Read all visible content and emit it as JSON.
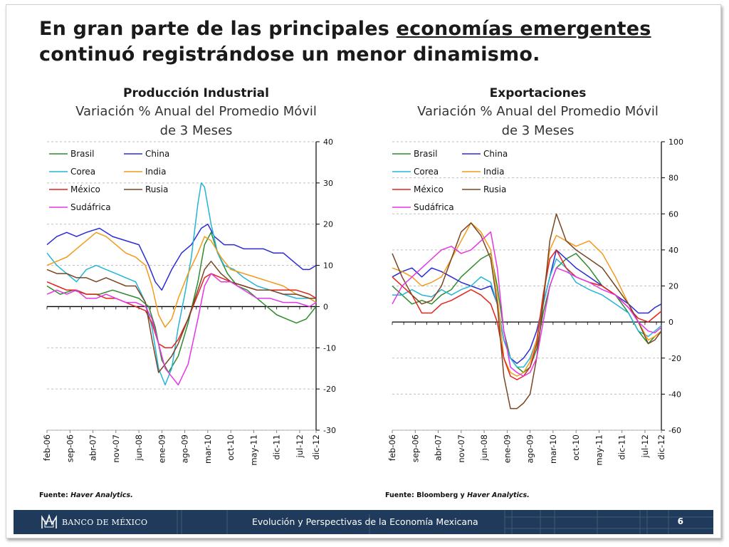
{
  "headline": {
    "part1": "En gran parte de las principales ",
    "underlined": "economías emergentes",
    "part2": " continuó registrándose un menor dinamismo."
  },
  "source_left": {
    "label": "Fuente: ",
    "italic": "Haver Analytics."
  },
  "source_right": {
    "label": "Fuente: Bloomberg y ",
    "italic": "Haver Analytics."
  },
  "footer": {
    "bank": "BANCO DE MÉXICO",
    "title": "Evolución y Perspectivas de la Economía Mexicana",
    "page": "6"
  },
  "chart_data": [
    {
      "type": "line",
      "title": "Producción Industrial",
      "subtitle_line1": "Variación % Anual del Promedio Móvil",
      "subtitle_line2": "de 3 Meses",
      "ylim": [
        -30,
        40
      ],
      "yticks": [
        -30,
        -20,
        -10,
        0,
        10,
        20,
        30,
        40
      ],
      "y_axis_side": "right",
      "xlim": [
        0,
        82
      ],
      "x_tick_labels": [
        "feb-06",
        "sep-06",
        "abr-07",
        "nov-07",
        "jun-08",
        "ene-09",
        "ago-09",
        "mar-10",
        "oct-10",
        "may-11",
        "dic-11",
        "jul-12",
        "dic-12"
      ],
      "x_tick_index": [
        0,
        7,
        14,
        21,
        28,
        35,
        42,
        49,
        56,
        63,
        70,
        77,
        82
      ],
      "grid": "horizontal dashed",
      "legend_placement": "top-left",
      "series": [
        {
          "name": "Brasil",
          "color": "#2e8b2e",
          "x": [
            0,
            4,
            8,
            12,
            16,
            20,
            24,
            28,
            31,
            33,
            35,
            37,
            40,
            43,
            46,
            48,
            50,
            52,
            55,
            58,
            61,
            64,
            67,
            70,
            73,
            76,
            79,
            82
          ],
          "values": [
            5,
            3,
            4,
            3,
            3,
            4,
            3,
            2,
            0,
            -5,
            -13,
            -16,
            -12,
            -4,
            6,
            15,
            18,
            13,
            8,
            5,
            4,
            2,
            0,
            -2,
            -3,
            -4,
            -3,
            0
          ]
        },
        {
          "name": "China",
          "color": "#2b2bd6",
          "x": [
            0,
            3,
            6,
            9,
            12,
            16,
            20,
            24,
            28,
            31,
            33,
            35,
            38,
            41,
            44,
            47,
            49,
            51,
            54,
            57,
            60,
            63,
            66,
            69,
            72,
            75,
            78,
            80,
            82
          ],
          "values": [
            15,
            17,
            18,
            17,
            18,
            19,
            17,
            16,
            15,
            10,
            6,
            4,
            9,
            13,
            15,
            19,
            20,
            17,
            15,
            15,
            14,
            14,
            14,
            13,
            13,
            11,
            9,
            9,
            10
          ]
        },
        {
          "name": "Corea",
          "color": "#23b5d8",
          "x": [
            0,
            3,
            6,
            9,
            12,
            15,
            18,
            21,
            24,
            27,
            30,
            32,
            34,
            36,
            38,
            40,
            42,
            44,
            46,
            47,
            48,
            50,
            52,
            54,
            57,
            60,
            64,
            68,
            72,
            76,
            80,
            82
          ],
          "values": [
            13,
            10,
            8,
            6,
            9,
            10,
            9,
            8,
            7,
            6,
            1,
            -5,
            -15,
            -19,
            -15,
            -5,
            3,
            12,
            25,
            30,
            29,
            20,
            13,
            10,
            9,
            7,
            5,
            4,
            3,
            2,
            2,
            1
          ]
        },
        {
          "name": "India",
          "color": "#f39a1c",
          "x": [
            0,
            3,
            6,
            9,
            12,
            15,
            18,
            21,
            24,
            27,
            30,
            32,
            34,
            36,
            38,
            40,
            43,
            46,
            48,
            50,
            53,
            56,
            60,
            64,
            68,
            72,
            76,
            80,
            82
          ],
          "values": [
            10,
            11,
            12,
            14,
            16,
            18,
            17,
            15,
            13,
            12,
            10,
            5,
            -2,
            -5,
            -3,
            2,
            8,
            13,
            17,
            16,
            12,
            9,
            8,
            7,
            6,
            5,
            3,
            2,
            1
          ]
        },
        {
          "name": "México",
          "color": "#e2231a",
          "x": [
            0,
            3,
            6,
            9,
            12,
            15,
            18,
            21,
            24,
            27,
            30,
            32,
            34,
            36,
            38,
            40,
            43,
            46,
            48,
            50,
            53,
            56,
            60,
            64,
            68,
            72,
            76,
            80,
            82
          ],
          "values": [
            6,
            5,
            4,
            4,
            3,
            3,
            2,
            2,
            1,
            0,
            -1,
            -4,
            -9,
            -10,
            -10,
            -8,
            -3,
            3,
            7,
            8,
            7,
            6,
            5,
            4,
            4,
            4,
            4,
            3,
            2
          ]
        },
        {
          "name": "Rusia",
          "color": "#7a4522",
          "x": [
            0,
            3,
            6,
            9,
            12,
            15,
            18,
            21,
            24,
            27,
            30,
            32,
            34,
            36,
            38,
            40,
            43,
            46,
            48,
            50,
            53,
            56,
            60,
            64,
            68,
            72,
            76,
            80,
            82
          ],
          "values": [
            9,
            8,
            8,
            7,
            7,
            6,
            7,
            6,
            5,
            5,
            1,
            -8,
            -16,
            -14,
            -12,
            -9,
            -3,
            4,
            9,
            11,
            8,
            6,
            5,
            4,
            4,
            3,
            3,
            2,
            2
          ]
        },
        {
          "name": "Sudáfrica",
          "color": "#e535e5",
          "x": [
            0,
            3,
            6,
            9,
            12,
            15,
            18,
            21,
            24,
            27,
            30,
            32,
            34,
            36,
            38,
            40,
            43,
            46,
            48,
            50,
            53,
            56,
            60,
            64,
            68,
            72,
            76,
            80,
            82
          ],
          "values": [
            3,
            4,
            3,
            4,
            2,
            2,
            3,
            2,
            1,
            1,
            0,
            -3,
            -9,
            -15,
            -17,
            -19,
            -14,
            -3,
            5,
            8,
            6,
            6,
            4,
            2,
            2,
            1,
            1,
            0,
            1
          ]
        }
      ]
    },
    {
      "type": "line",
      "title": "Exportaciones",
      "subtitle_line1": "Variación % Anual del Promedio Móvil",
      "subtitle_line2": "de 3 Meses",
      "ylim": [
        -60,
        100
      ],
      "yticks": [
        -60,
        -40,
        -20,
        0,
        20,
        40,
        60,
        80,
        100
      ],
      "y_axis_side": "right",
      "xlim": [
        0,
        82
      ],
      "x_tick_labels": [
        "feb-06",
        "sep-06",
        "abr-07",
        "nov-07",
        "jun-08",
        "ene-09",
        "ago-09",
        "mar-10",
        "oct-10",
        "may-11",
        "dic-11",
        "jul-12",
        "dic-12"
      ],
      "x_tick_index": [
        0,
        7,
        14,
        21,
        28,
        35,
        42,
        49,
        56,
        63,
        70,
        77,
        82
      ],
      "grid": "horizontal dashed",
      "legend_placement": "top-left",
      "series": [
        {
          "name": "Brasil",
          "color": "#2e8b2e",
          "x": [
            0,
            3,
            6,
            9,
            12,
            15,
            18,
            21,
            24,
            27,
            30,
            32,
            34,
            36,
            38,
            40,
            42,
            44,
            46,
            48,
            50,
            53,
            56,
            60,
            64,
            68,
            72,
            75,
            78,
            80,
            82
          ],
          "values": [
            20,
            15,
            10,
            12,
            10,
            15,
            18,
            25,
            30,
            35,
            38,
            20,
            -5,
            -20,
            -25,
            -28,
            -25,
            -15,
            5,
            20,
            30,
            35,
            38,
            30,
            20,
            15,
            5,
            -5,
            -12,
            -8,
            -5
          ]
        },
        {
          "name": "China",
          "color": "#2b2bd6",
          "x": [
            0,
            3,
            6,
            9,
            12,
            15,
            18,
            21,
            24,
            27,
            30,
            32,
            34,
            36,
            38,
            40,
            42,
            44,
            46,
            48,
            50,
            53,
            56,
            60,
            64,
            68,
            72,
            75,
            78,
            80,
            82
          ],
          "values": [
            25,
            28,
            30,
            25,
            30,
            28,
            25,
            22,
            20,
            18,
            20,
            10,
            -10,
            -20,
            -23,
            -20,
            -15,
            -5,
            10,
            25,
            40,
            35,
            30,
            25,
            20,
            15,
            10,
            5,
            5,
            8,
            10
          ]
        },
        {
          "name": "Corea",
          "color": "#23b5d8",
          "x": [
            0,
            3,
            6,
            9,
            12,
            15,
            18,
            21,
            24,
            27,
            30,
            32,
            34,
            36,
            38,
            40,
            42,
            44,
            46,
            48,
            50,
            53,
            56,
            60,
            64,
            68,
            72,
            75,
            78,
            80,
            82
          ],
          "values": [
            15,
            15,
            18,
            15,
            14,
            18,
            15,
            18,
            20,
            25,
            22,
            10,
            -10,
            -20,
            -25,
            -25,
            -20,
            -10,
            10,
            25,
            35,
            30,
            22,
            18,
            15,
            10,
            5,
            -5,
            -8,
            -5,
            -2
          ]
        },
        {
          "name": "India",
          "color": "#f39a1c",
          "x": [
            0,
            3,
            6,
            9,
            12,
            15,
            18,
            21,
            24,
            27,
            30,
            32,
            34,
            36,
            38,
            40,
            42,
            44,
            46,
            48,
            50,
            53,
            56,
            60,
            64,
            68,
            72,
            75,
            78,
            80,
            82
          ],
          "values": [
            30,
            28,
            25,
            20,
            22,
            25,
            35,
            45,
            55,
            50,
            40,
            15,
            -20,
            -28,
            -30,
            -28,
            -22,
            -10,
            15,
            40,
            48,
            45,
            42,
            45,
            38,
            25,
            10,
            0,
            -10,
            -8,
            -5
          ]
        },
        {
          "name": "México",
          "color": "#e2231a",
          "x": [
            0,
            3,
            6,
            9,
            12,
            15,
            18,
            21,
            24,
            27,
            30,
            32,
            34,
            36,
            38,
            40,
            42,
            44,
            46,
            48,
            50,
            53,
            56,
            60,
            64,
            68,
            72,
            75,
            78,
            80,
            82
          ],
          "values": [
            25,
            20,
            15,
            5,
            5,
            10,
            12,
            15,
            18,
            15,
            10,
            0,
            -20,
            -30,
            -32,
            -30,
            -25,
            -12,
            15,
            35,
            40,
            30,
            25,
            22,
            20,
            15,
            8,
            2,
            0,
            3,
            6
          ]
        },
        {
          "name": "Rusia",
          "color": "#7a4522",
          "x": [
            0,
            3,
            6,
            9,
            12,
            15,
            18,
            21,
            24,
            27,
            30,
            32,
            34,
            36,
            38,
            40,
            42,
            44,
            46,
            48,
            50,
            53,
            56,
            60,
            64,
            68,
            72,
            75,
            78,
            80,
            82
          ],
          "values": [
            38,
            25,
            15,
            10,
            12,
            20,
            35,
            50,
            55,
            48,
            35,
            10,
            -30,
            -48,
            -48,
            -45,
            -40,
            -20,
            10,
            45,
            60,
            45,
            40,
            35,
            30,
            20,
            10,
            0,
            -12,
            -10,
            -5
          ]
        },
        {
          "name": "Sudáfrica",
          "color": "#e535e5",
          "x": [
            0,
            3,
            6,
            9,
            12,
            15,
            18,
            21,
            24,
            27,
            30,
            32,
            34,
            36,
            38,
            40,
            42,
            44,
            46,
            48,
            50,
            53,
            56,
            60,
            64,
            68,
            72,
            75,
            78,
            80,
            82
          ],
          "values": [
            10,
            20,
            25,
            30,
            35,
            40,
            42,
            38,
            40,
            45,
            50,
            30,
            -5,
            -25,
            -28,
            -30,
            -28,
            -20,
            0,
            20,
            30,
            28,
            25,
            22,
            18,
            15,
            8,
            0,
            -5,
            -6,
            -3
          ]
        }
      ]
    }
  ]
}
